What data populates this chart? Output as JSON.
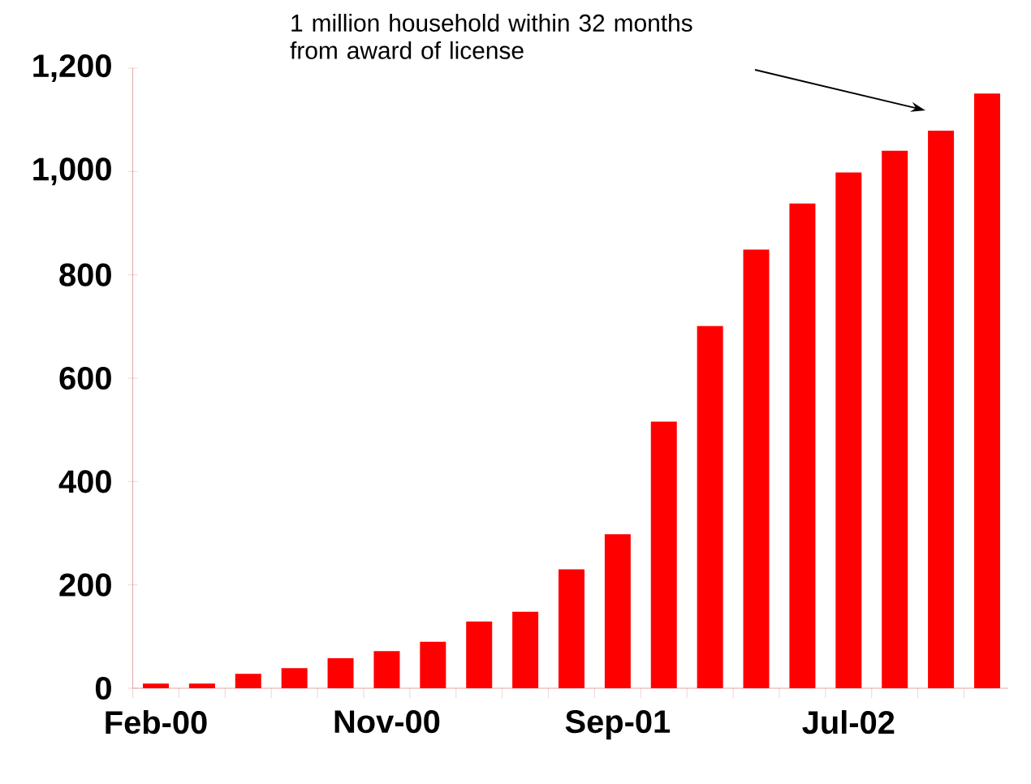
{
  "chart_data": {
    "type": "bar",
    "categories": [
      "Feb-00",
      null,
      null,
      null,
      null,
      "Nov-00",
      null,
      null,
      null,
      null,
      "Sep-01",
      null,
      null,
      null,
      null,
      "Jul-02",
      null,
      null,
      null
    ],
    "values": [
      9,
      9,
      28,
      39,
      58,
      72,
      90,
      129,
      148,
      230,
      298,
      516,
      701,
      849,
      938,
      998,
      1040,
      1079,
      1151
    ],
    "color": "#ff0000",
    "ylim": [
      0,
      1200
    ],
    "yticks": [
      {
        "value": 0,
        "label": "0"
      },
      {
        "value": 200,
        "label": "200"
      },
      {
        "value": 400,
        "label": "400"
      },
      {
        "value": 600,
        "label": "600"
      },
      {
        "value": 800,
        "label": "800"
      },
      {
        "value": 1000,
        "label": "1,000"
      },
      {
        "value": 1200,
        "label": "1,200"
      }
    ],
    "annotations": [
      "1 million household  within 32 months from award of license"
    ],
    "grid": false
  }
}
